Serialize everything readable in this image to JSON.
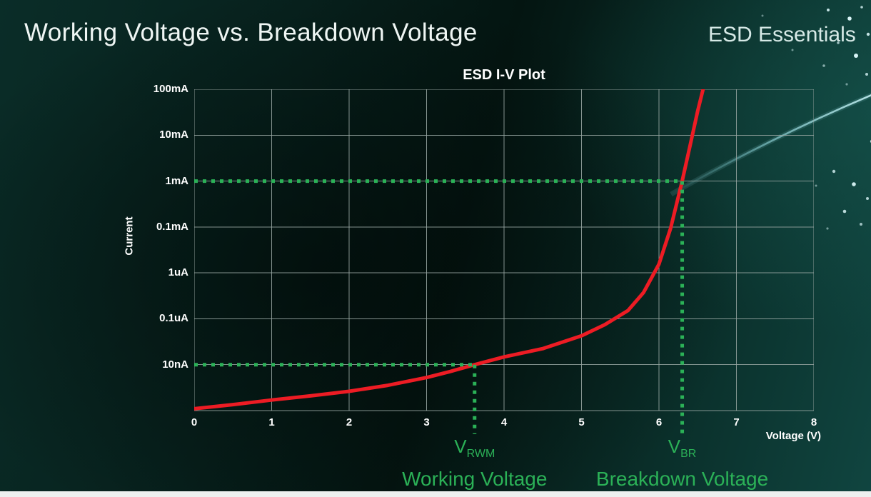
{
  "page": {
    "title": "Working Voltage vs. Breakdown Voltage",
    "brand": "ESD Essentials"
  },
  "chart_data": {
    "type": "line",
    "title": "ESD I-V Plot",
    "xlabel": "Voltage (V)",
    "ylabel": "Current",
    "x_ticks": [
      "0",
      "1",
      "2",
      "3",
      "4",
      "5",
      "6",
      "7",
      "8"
    ],
    "xlim": [
      0,
      8
    ],
    "y_ticks_top_to_bottom": [
      "100mA",
      "10mA",
      "1mA",
      "0.1mA",
      "1uA",
      "0.1uA",
      "10nA"
    ],
    "y_scale_note": "log-style current axis; series y values given as gridline rows above the bottom axis (0 = bottom, 7 = top / 100mA line)",
    "grid": true,
    "legend": "none",
    "series": [
      {
        "name": "ESD diode I-V curve",
        "color": "#ed1c24",
        "points": [
          [
            0,
            0.04
          ],
          [
            0.5,
            0.13
          ],
          [
            1,
            0.23
          ],
          [
            1.5,
            0.32
          ],
          [
            2,
            0.42
          ],
          [
            2.5,
            0.55
          ],
          [
            3,
            0.72
          ],
          [
            3.3,
            0.85
          ],
          [
            3.62,
            1.0
          ],
          [
            4,
            1.17
          ],
          [
            4.5,
            1.35
          ],
          [
            5,
            1.63
          ],
          [
            5.3,
            1.87
          ],
          [
            5.6,
            2.18
          ],
          [
            5.8,
            2.57
          ],
          [
            6.0,
            3.19
          ],
          [
            6.15,
            3.97
          ],
          [
            6.3,
            5.0
          ],
          [
            6.4,
            5.76
          ],
          [
            6.5,
            6.53
          ],
          [
            6.57,
            7.0
          ]
        ]
      }
    ],
    "annotations": [
      {
        "id": "vrwm",
        "x_volts": 3.62,
        "row": 1,
        "at_current": "10nA",
        "label_main": "V",
        "label_sub": "RWM",
        "caption": "Working Voltage"
      },
      {
        "id": "vbr",
        "x_volts": 6.3,
        "row": 5,
        "at_current": "1mA",
        "label_main": "V",
        "label_sub": "BR",
        "caption": "Breakdown Voltage"
      }
    ],
    "colors": {
      "curve": "#ed1c24",
      "annotation": "#2bb157",
      "grid": "#9aa8a4",
      "text": "#ffffff"
    }
  }
}
